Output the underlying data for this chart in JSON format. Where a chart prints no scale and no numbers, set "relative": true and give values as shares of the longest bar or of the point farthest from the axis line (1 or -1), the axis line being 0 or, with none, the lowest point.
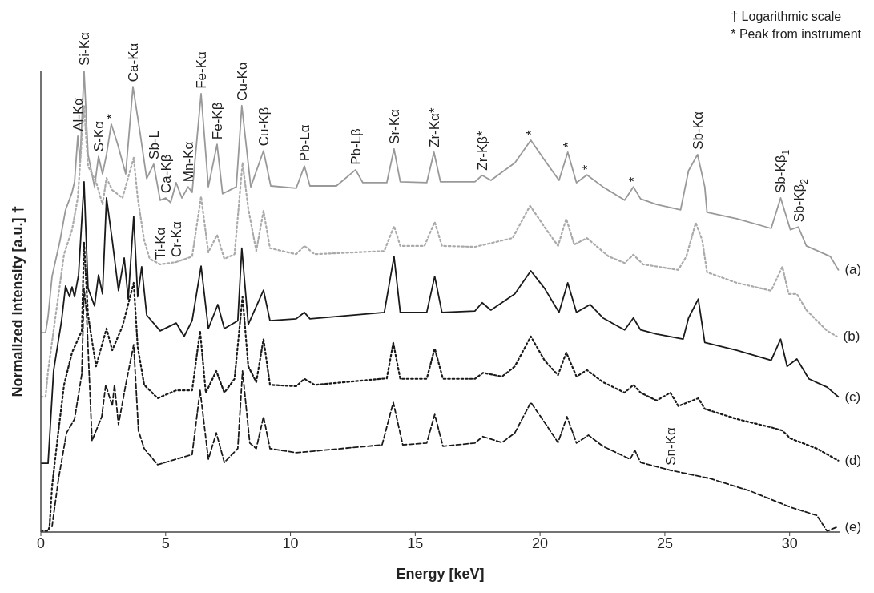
{
  "chart_data": {
    "type": "line",
    "relative": true,
    "xlabel": "Energy [keV]",
    "ylabel": "Normalized intensity [a.u.] †",
    "xlim": [
      0,
      32
    ],
    "xticks": [
      0,
      5,
      10,
      15,
      20,
      25,
      30
    ],
    "series": [
      {
        "name": "(a)",
        "color": "#999999",
        "line_style": "solid",
        "x": [
          0,
          0.19,
          0.29,
          0.45,
          0.77,
          0.99,
          1.25,
          1.35,
          1.48,
          1.57,
          1.73,
          1.89,
          2.15,
          2.31,
          2.47,
          2.63,
          2.82,
          3.08,
          3.4,
          3.69,
          3.98,
          4.24,
          4.52,
          4.78,
          5.0,
          5.2,
          5.42,
          5.65,
          5.9,
          6.06,
          6.42,
          6.71,
          7.06,
          7.28,
          7.83,
          8.05,
          8.41,
          8.92,
          9.21,
          10.23,
          10.56,
          10.78,
          11.84,
          12.61,
          12.9,
          13.86,
          14.15,
          14.4,
          15.46,
          15.75,
          16.01,
          17.39,
          17.68,
          18.03,
          18.99,
          19.63,
          20.18,
          20.76,
          21.11,
          21.46,
          21.88,
          22.52,
          23.39,
          23.74,
          24.03,
          24.67,
          25.63,
          25.95,
          26.31,
          26.6,
          26.69,
          27.88,
          29.26,
          29.64,
          30.03,
          30.35,
          30.67,
          31.63,
          31.95
        ],
        "values": [
          0.432,
          0.432,
          0.467,
          0.554,
          0.632,
          0.698,
          0.736,
          0.759,
          0.858,
          0.8,
          1.0,
          0.818,
          0.748,
          0.814,
          0.776,
          0.818,
          0.884,
          0.84,
          0.776,
          0.965,
          0.863,
          0.766,
          0.797,
          0.719,
          0.724,
          0.714,
          0.757,
          0.724,
          0.748,
          0.736,
          0.95,
          0.748,
          0.84,
          0.733,
          0.748,
          0.924,
          0.748,
          0.826,
          0.75,
          0.745,
          0.793,
          0.75,
          0.75,
          0.785,
          0.757,
          0.757,
          0.83,
          0.759,
          0.757,
          0.823,
          0.759,
          0.759,
          0.773,
          0.762,
          0.8,
          0.849,
          0.806,
          0.762,
          0.823,
          0.757,
          0.774,
          0.748,
          0.719,
          0.748,
          0.722,
          0.71,
          0.698,
          0.783,
          0.818,
          0.748,
          0.693,
          0.679,
          0.658,
          0.724,
          0.655,
          0.661,
          0.62,
          0.597,
          0.568
        ]
      },
      {
        "name": "(b)",
        "color": "#aaaaaa",
        "line_style": "dotted",
        "x": [
          0,
          0.19,
          0.29,
          0.61,
          0.93,
          1.25,
          1.48,
          1.73,
          1.89,
          2.21,
          2.47,
          2.63,
          2.86,
          3.27,
          3.72,
          3.88,
          4.14,
          4.36,
          4.78,
          5.42,
          6.06,
          6.42,
          6.71,
          7.06,
          7.35,
          7.76,
          8.08,
          8.31,
          8.63,
          8.92,
          9.18,
          10.23,
          10.56,
          10.97,
          13.76,
          14.15,
          14.4,
          15.37,
          15.78,
          16.07,
          17.39,
          18.9,
          19.6,
          20.18,
          20.72,
          21.05,
          21.37,
          21.88,
          22.75,
          23.39,
          23.74,
          24.13,
          25.54,
          25.86,
          26.24,
          26.5,
          26.69,
          27.88,
          29.26,
          29.71,
          29.96,
          30.29,
          30.67,
          31.5,
          31.89
        ],
        "values": [
          0.293,
          0.293,
          0.349,
          0.476,
          0.602,
          0.655,
          0.724,
          0.924,
          0.793,
          0.759,
          0.71,
          0.767,
          0.741,
          0.724,
          0.811,
          0.724,
          0.632,
          0.592,
          0.58,
          0.585,
          0.597,
          0.727,
          0.606,
          0.644,
          0.592,
          0.602,
          0.8,
          0.701,
          0.609,
          0.696,
          0.615,
          0.602,
          0.62,
          0.602,
          0.609,
          0.663,
          0.62,
          0.62,
          0.672,
          0.62,
          0.618,
          0.637,
          0.707,
          0.661,
          0.62,
          0.679,
          0.623,
          0.637,
          0.597,
          0.583,
          0.601,
          0.58,
          0.568,
          0.597,
          0.67,
          0.632,
          0.563,
          0.54,
          0.523,
          0.575,
          0.516,
          0.516,
          0.481,
          0.436,
          0.424
        ]
      },
      {
        "name": "(c)",
        "color": "#1a1a1a",
        "line_style": "solid",
        "x": [
          0,
          0.29,
          0.35,
          0.51,
          0.83,
          0.99,
          1.15,
          1.25,
          1.35,
          1.51,
          1.73,
          1.89,
          2.15,
          2.31,
          2.47,
          2.63,
          2.86,
          3.11,
          3.34,
          3.5,
          3.72,
          3.88,
          4.04,
          4.24,
          4.78,
          5.42,
          5.74,
          6.06,
          6.42,
          6.71,
          7.09,
          7.35,
          7.89,
          8.05,
          8.31,
          8.92,
          9.18,
          10.23,
          10.56,
          10.78,
          13.76,
          14.15,
          14.4,
          15.46,
          15.78,
          16.07,
          17.39,
          17.68,
          18.03,
          18.99,
          19.63,
          20.18,
          20.76,
          21.11,
          21.46,
          22.01,
          22.52,
          23.39,
          23.74,
          24.03,
          24.67,
          25.73,
          25.95,
          26.34,
          26.6,
          27.88,
          29.26,
          29.64,
          29.9,
          30.29,
          30.77,
          31.5,
          31.95
        ],
        "values": [
          0.149,
          0.149,
          0.203,
          0.349,
          0.458,
          0.533,
          0.51,
          0.531,
          0.51,
          0.557,
          0.759,
          0.528,
          0.49,
          0.557,
          0.516,
          0.724,
          0.632,
          0.523,
          0.594,
          0.505,
          0.684,
          0.51,
          0.575,
          0.47,
          0.436,
          0.453,
          0.424,
          0.458,
          0.576,
          0.441,
          0.493,
          0.441,
          0.458,
          0.615,
          0.45,
          0.524,
          0.458,
          0.462,
          0.476,
          0.462,
          0.476,
          0.597,
          0.476,
          0.476,
          0.554,
          0.476,
          0.479,
          0.497,
          0.481,
          0.516,
          0.566,
          0.528,
          0.476,
          0.54,
          0.476,
          0.493,
          0.464,
          0.438,
          0.464,
          0.438,
          0.429,
          0.418,
          0.464,
          0.505,
          0.411,
          0.394,
          0.372,
          0.418,
          0.359,
          0.375,
          0.332,
          0.314,
          0.293
        ]
      },
      {
        "name": "(d)",
        "color": "#1a1a1a",
        "line_style": "dotted",
        "x": [
          0,
          0.29,
          0.35,
          0.45,
          0.67,
          0.93,
          1.25,
          1.64,
          1.73,
          1.89,
          2.21,
          2.63,
          2.86,
          3.27,
          3.72,
          3.88,
          4.14,
          4.68,
          5.42,
          6.06,
          6.38,
          6.61,
          7.03,
          7.35,
          7.76,
          8.08,
          8.31,
          8.63,
          8.92,
          9.18,
          10.23,
          10.56,
          10.97,
          13.86,
          14.12,
          14.4,
          15.46,
          15.78,
          16.11,
          17.39,
          17.71,
          18.48,
          18.99,
          19.63,
          20.18,
          20.72,
          21.05,
          21.46,
          21.88,
          22.52,
          23.39,
          23.74,
          24.03,
          24.67,
          25.22,
          25.54,
          26.34,
          26.6,
          27.88,
          29.26,
          29.71,
          30.03,
          31.09,
          31.95
        ],
        "values": [
          0.002,
          0.002,
          0.012,
          0.099,
          0.203,
          0.319,
          0.389,
          0.436,
          0.627,
          0.47,
          0.359,
          0.441,
          0.394,
          0.446,
          0.54,
          0.401,
          0.319,
          0.29,
          0.307,
          0.307,
          0.436,
          0.302,
          0.349,
          0.302,
          0.332,
          0.51,
          0.359,
          0.325,
          0.418,
          0.319,
          0.316,
          0.332,
          0.319,
          0.333,
          0.41,
          0.332,
          0.332,
          0.398,
          0.332,
          0.332,
          0.345,
          0.337,
          0.359,
          0.424,
          0.372,
          0.34,
          0.389,
          0.337,
          0.351,
          0.325,
          0.302,
          0.319,
          0.302,
          0.285,
          0.302,
          0.273,
          0.29,
          0.267,
          0.245,
          0.227,
          0.22,
          0.203,
          0.181,
          0.155
        ]
      },
      {
        "name": "(e)",
        "color": "#1a1a1a",
        "line_style": "dashed",
        "x": [
          0.45,
          0.71,
          1.03,
          1.35,
          1.64,
          1.73,
          1.83,
          2.05,
          2.44,
          2.6,
          2.86,
          2.95,
          3.11,
          3.4,
          3.72,
          3.91,
          4.14,
          4.68,
          5.42,
          6.06,
          6.38,
          6.71,
          7.03,
          7.35,
          7.89,
          8.08,
          8.37,
          8.63,
          8.92,
          9.18,
          10.23,
          13.67,
          14.12,
          14.5,
          15.46,
          15.78,
          16.11,
          17.39,
          17.71,
          18.48,
          18.99,
          19.63,
          20.18,
          20.72,
          21.08,
          21.46,
          21.94,
          22.52,
          23.61,
          23.8,
          24.03,
          25.22,
          26.82,
          28.42,
          30.03,
          31.09,
          31.5,
          31.95
        ],
        "values": [
          0.012,
          0.116,
          0.215,
          0.245,
          0.342,
          0.528,
          0.476,
          0.198,
          0.25,
          0.319,
          0.273,
          0.319,
          0.233,
          0.319,
          0.406,
          0.22,
          0.181,
          0.146,
          0.158,
          0.168,
          0.307,
          0.158,
          0.215,
          0.151,
          0.181,
          0.349,
          0.193,
          0.181,
          0.25,
          0.181,
          0.172,
          0.189,
          0.281,
          0.189,
          0.193,
          0.255,
          0.186,
          0.193,
          0.207,
          0.194,
          0.215,
          0.281,
          0.238,
          0.194,
          0.25,
          0.193,
          0.21,
          0.186,
          0.158,
          0.177,
          0.151,
          0.134,
          0.116,
          0.089,
          0.054,
          0.036,
          0.002,
          0.012
        ]
      }
    ],
    "annotations": [
      "† Logarithmic scale",
      "* Peak from instrument",
      {
        "text": "Al-Kα",
        "x": 1.48,
        "y": 0.858
      },
      {
        "text": "Si-Kα",
        "x": 1.73,
        "y": 1.0
      },
      {
        "text": "S-Kα",
        "x": 2.31,
        "y": 0.814
      },
      {
        "text": "*",
        "x": 2.82,
        "y": 0.884
      },
      {
        "text": "Ca-Kα",
        "x": 3.69,
        "y": 0.965
      },
      {
        "text": "Sb-L",
        "x": 4.52,
        "y": 0.797
      },
      {
        "text": "Ca-Kβ",
        "x": 5.0,
        "y": 0.724
      },
      {
        "text": "Ti-Kα",
        "x": 4.78,
        "y": 0.58
      },
      {
        "text": "Cr-Kα",
        "x": 5.42,
        "y": 0.585
      },
      {
        "text": "Mn-Kα",
        "x": 5.9,
        "y": 0.748
      },
      {
        "text": "Fe-Kα",
        "x": 6.42,
        "y": 0.95
      },
      {
        "text": "Fe-Kβ",
        "x": 7.06,
        "y": 0.84
      },
      {
        "text": "Cu-Kα",
        "x": 8.05,
        "y": 0.924
      },
      {
        "text": "Cu-Kβ",
        "x": 8.92,
        "y": 0.826
      },
      {
        "text": "Pb-Lα",
        "x": 10.56,
        "y": 0.793
      },
      {
        "text": "Pb-Lβ",
        "x": 12.61,
        "y": 0.785
      },
      {
        "text": "Sr-Kα",
        "x": 14.15,
        "y": 0.83
      },
      {
        "text": "Zr-Kα*",
        "x": 15.75,
        "y": 0.823
      },
      {
        "text": "Zr-Kβ*",
        "x": 17.68,
        "y": 0.773
      },
      {
        "text": "*",
        "x": 19.63,
        "y": 0.849
      },
      {
        "text": "*",
        "x": 21.11,
        "y": 0.823
      },
      {
        "text": "*",
        "x": 21.88,
        "y": 0.774
      },
      {
        "text": "*",
        "x": 23.74,
        "y": 0.748
      },
      {
        "text": "Sb-Kα",
        "x": 26.31,
        "y": 0.818
      },
      {
        "text": "Sb-Kβ$_{1}$",
        "x": 29.64,
        "y": 0.724
      },
      {
        "text": "Sb-Kβ$_{2}$",
        "x": 30.35,
        "y": 0.661
      },
      {
        "text": "Sn-Kα",
        "x": 25.22,
        "y": 0.134
      }
    ]
  }
}
